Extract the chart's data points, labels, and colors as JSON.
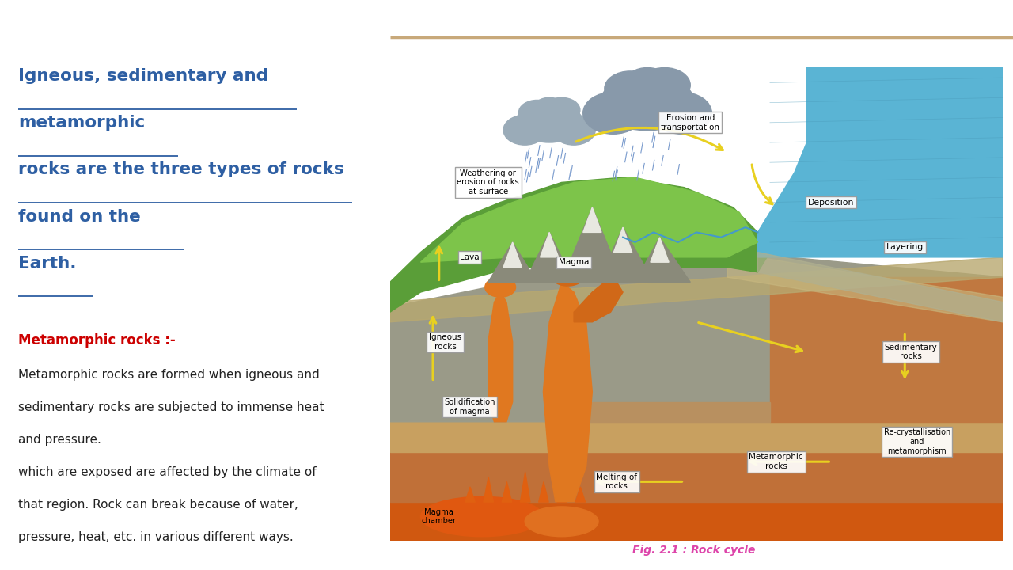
{
  "bg_color": "#ffffff",
  "title_lines": [
    "Igneous, sedimentary and",
    "metamorphic",
    "rocks are the three types of rocks",
    "found on the",
    "Earth."
  ],
  "title_color": "#2E5FA3",
  "title_fontsize": 15.5,
  "subtitle_label": "Metamorphic rocks :-",
  "subtitle_color": "#cc0000",
  "subtitle_fontsize": 12,
  "body_lines": [
    "Metamorphic rocks are formed when igneous and",
    "sedimentary rocks are subjected to immense heat",
    "and pressure.",
    "which are exposed are affected by the climate of",
    "that region. Rock can break because of water,",
    "pressure, heat, etc. in various different ways."
  ],
  "body_color": "#222222",
  "body_fontsize": 11,
  "divider_color": "#c8a97a",
  "fig_caption": "Fig. 2.1 : Rock cycle",
  "fig_caption_color": "#dd44aa",
  "cloud_color": "#9aabb8",
  "rain_color": "#7799cc",
  "green_light": "#7dc44a",
  "green_dark": "#5a9e38",
  "blue_sea": "#5ab4d4",
  "gray_rock": "#9a9a88",
  "brown_base": "#c8784a",
  "brown_dark": "#a05a28",
  "orange_magma": "#e07820",
  "orange_dark": "#d05010",
  "tan_layer": "#c8a060",
  "arrow_color": "#e8d020",
  "label_edge": "#999999"
}
